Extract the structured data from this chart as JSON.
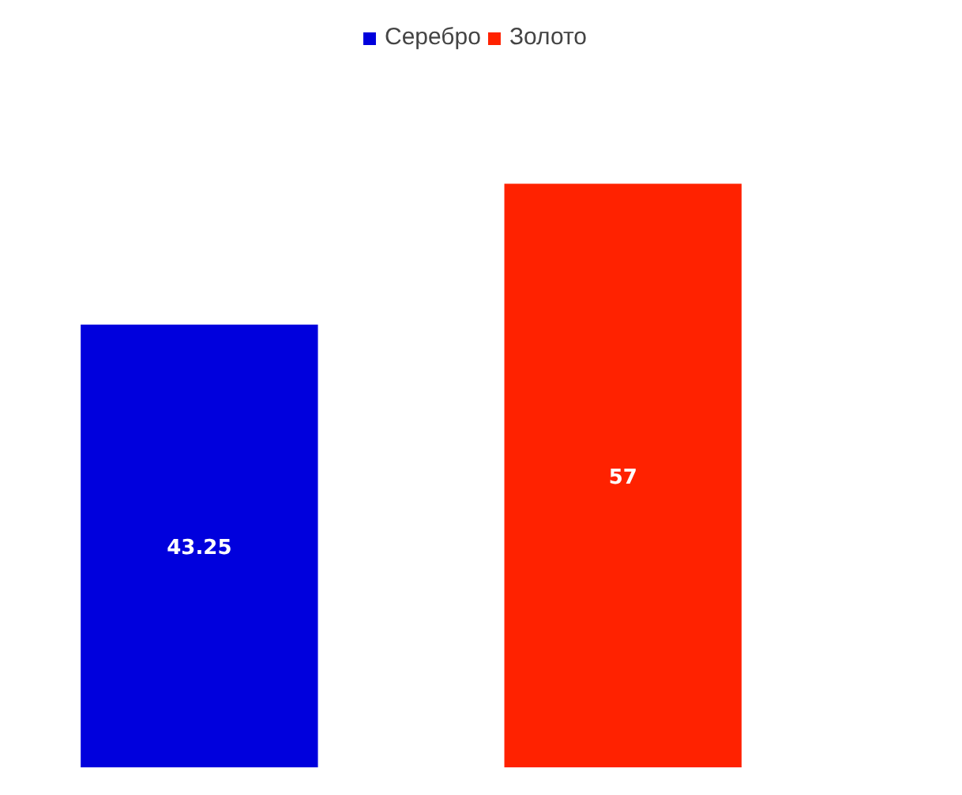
{
  "chart_data": {
    "type": "bar",
    "categories": [
      null,
      null
    ],
    "series": [
      {
        "name": "Серебро",
        "color": "#0000dd",
        "values": [
          43.25,
          null
        ]
      },
      {
        "name": "Золото",
        "color": "#ff2200",
        "values": [
          null,
          57
        ]
      }
    ],
    "stacked": true,
    "data_labels": true,
    "legend": "top"
  }
}
